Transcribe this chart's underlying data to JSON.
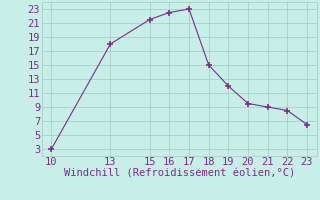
{
  "x": [
    10,
    13,
    15,
    16,
    17,
    18,
    19,
    20,
    21,
    22,
    23
  ],
  "y": [
    3,
    18,
    21.5,
    22.5,
    23,
    15,
    12,
    9.5,
    9,
    8.5,
    6.5
  ],
  "line_color": "#7B2D8B",
  "marker_color": "#7B2D8B",
  "bg_color": "#C8EEE8",
  "grid_color": "#A8C8C4",
  "xlabel": "Windchill (Refroidissement éolien,°C)",
  "xlabel_color": "#7B2D8B",
  "tick_color": "#7B2D8B",
  "xlim": [
    9.5,
    23.5
  ],
  "ylim": [
    2,
    24
  ],
  "xticks": [
    10,
    13,
    15,
    16,
    17,
    18,
    19,
    20,
    21,
    22,
    23
  ],
  "yticks": [
    3,
    5,
    7,
    9,
    11,
    13,
    15,
    17,
    19,
    21,
    23
  ],
  "xlabel_fontsize": 7.5,
  "tick_fontsize": 7.5
}
